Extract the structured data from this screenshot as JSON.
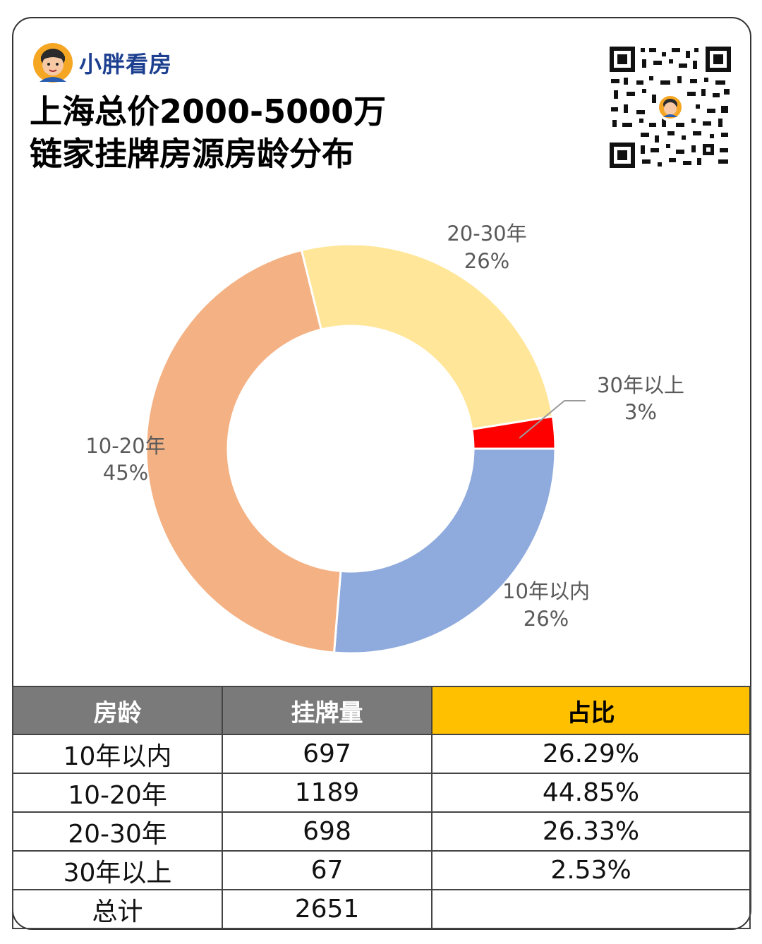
{
  "brand": {
    "name": "小胖看房"
  },
  "title": {
    "line1": "上海总价2000-5000万",
    "line2": "链家挂牌房源房龄分布"
  },
  "colors": {
    "band_10": "#8faadc",
    "band_10_20": "#f4b183",
    "band_20_30": "#ffe699",
    "band_30": "#ff0000",
    "header_gray": "#7a7a7a",
    "header_accent": "#ffc000"
  },
  "chart_data": {
    "type": "pie",
    "style": "donut",
    "categories": [
      "10年以内",
      "10-20年",
      "20-30年",
      "30年以上"
    ],
    "values": [
      697,
      1189,
      698,
      67
    ],
    "percent_labels": [
      "26%",
      "45%",
      "26%",
      "3%"
    ],
    "title": ""
  },
  "table": {
    "headers": [
      "房龄",
      "挂牌量",
      "占比"
    ],
    "rows": [
      [
        "10年以内",
        "697",
        "26.29%"
      ],
      [
        "10-20年",
        "1189",
        "44.85%"
      ],
      [
        "20-30年",
        "698",
        "26.33%"
      ],
      [
        "30年以上",
        "67",
        "2.53%"
      ],
      [
        "总计",
        "2651",
        ""
      ]
    ]
  }
}
